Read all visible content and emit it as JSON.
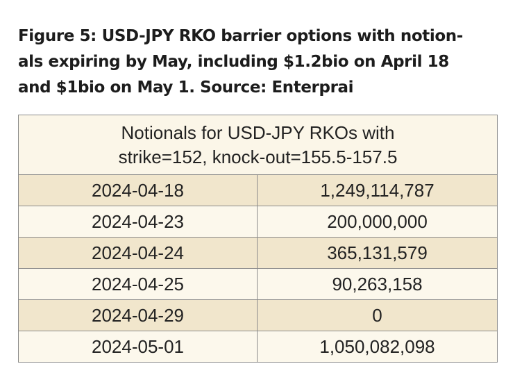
{
  "caption": {
    "lines": [
      "Figure 5: USD-JPY RKO barrier options with notion-",
      "als expiring by May, including $1.2bio on April 18",
      "and $1bio on May 1. Source: Enterprai"
    ]
  },
  "table": {
    "header_lines": [
      "Notionals for USD-JPY RKOs with",
      "strike=152, knock-out=155.5-157.5"
    ],
    "rows": [
      {
        "date": "2024-04-18",
        "notional": "1,249,114,787"
      },
      {
        "date": "2024-04-23",
        "notional": "200,000,000"
      },
      {
        "date": "2024-04-24",
        "notional": "365,131,579"
      },
      {
        "date": "2024-04-25",
        "notional": "90,263,158"
      },
      {
        "date": "2024-04-29",
        "notional": "0"
      },
      {
        "date": "2024-05-01",
        "notional": "1,050,082,098"
      }
    ],
    "colors": {
      "header_bg": "#fbf6e8",
      "shaded_row_bg": "#f1e6cc",
      "plain_row_bg": "#fcf8ec",
      "border": "#8a8a8a"
    }
  }
}
